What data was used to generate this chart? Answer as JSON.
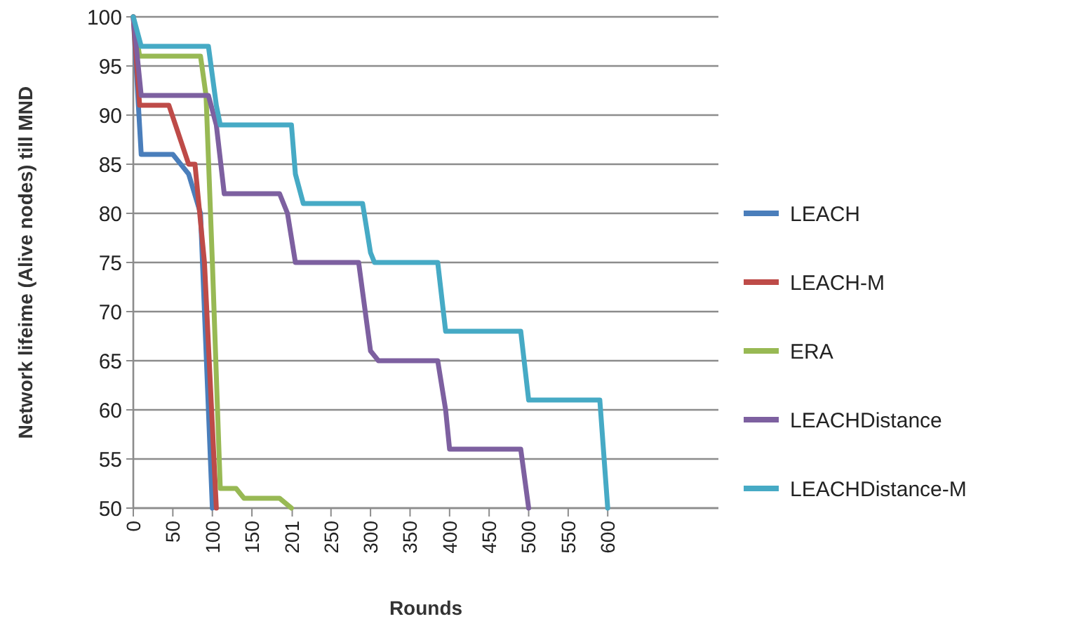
{
  "chart_data": {
    "type": "line",
    "xlabel": "Rounds",
    "ylabel": "Network lifeime (Alive nodes) till MND",
    "xlim": [
      0,
      740
    ],
    "xticks": [
      0,
      50,
      100,
      150,
      201,
      250,
      300,
      350,
      400,
      450,
      500,
      550,
      600
    ],
    "ylim": [
      50,
      100
    ],
    "yticks": [
      50,
      55,
      60,
      65,
      70,
      75,
      80,
      85,
      90,
      95,
      100
    ],
    "grid": "y",
    "legend": "right",
    "marker": "none",
    "line_style": "solid",
    "series": [
      {
        "name": "LEACH",
        "color": "#4a7ebb",
        "x": [
          0,
          10,
          50,
          70,
          85,
          100
        ],
        "values": [
          100,
          86,
          86,
          84,
          80,
          50
        ]
      },
      {
        "name": "LEACH-M",
        "color": "#be4b48",
        "x": [
          0,
          8,
          45,
          70,
          78,
          90,
          105
        ],
        "values": [
          100,
          91,
          91,
          85,
          85,
          75,
          50
        ]
      },
      {
        "name": "ERA",
        "color": "#98b954",
        "x": [
          0,
          8,
          85,
          92,
          100,
          110,
          130,
          140,
          185,
          200
        ],
        "values": [
          100,
          96,
          96,
          92,
          75,
          52,
          52,
          51,
          51,
          50
        ]
      },
      {
        "name": "LEACHDistance",
        "color": "#7d60a0",
        "x": [
          0,
          10,
          95,
          105,
          115,
          185,
          195,
          205,
          285,
          290,
          300,
          310,
          385,
          395,
          400,
          490,
          500
        ],
        "values": [
          100,
          92,
          92,
          89,
          82,
          82,
          80,
          75,
          75,
          72,
          66,
          65,
          65,
          60,
          56,
          56,
          50
        ]
      },
      {
        "name": "LEACHDistance-M",
        "color": "#46aac5",
        "x": [
          0,
          10,
          95,
          105,
          110,
          200,
          205,
          215,
          290,
          300,
          305,
          385,
          395,
          490,
          500,
          590,
          600
        ],
        "values": [
          100,
          97,
          97,
          91,
          89,
          89,
          84,
          81,
          81,
          76,
          75,
          75,
          68,
          68,
          61,
          61,
          50
        ]
      }
    ]
  }
}
